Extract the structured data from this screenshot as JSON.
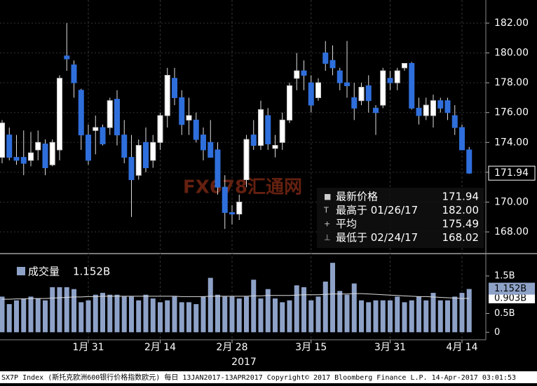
{
  "chart_data": {
    "type": "candlestick",
    "categories": [
      null,
      null,
      null,
      null,
      null,
      null,
      null,
      null,
      null,
      null,
      null,
      null,
      "1月 31",
      null,
      null,
      null,
      null,
      null,
      null,
      null,
      null,
      null,
      "2月 14",
      null,
      null,
      null,
      null,
      null,
      null,
      null,
      null,
      null,
      "2月 28",
      null,
      null,
      null,
      null,
      null,
      null,
      null,
      null,
      null,
      null,
      "3月 15",
      null,
      null,
      null,
      null,
      null,
      null,
      null,
      null,
      null,
      null,
      "3月 31",
      null,
      null,
      null,
      null,
      null,
      null,
      null,
      null,
      null,
      "4月 14",
      null
    ],
    "ohlc": [
      [
        173.0,
        175.5,
        172.6,
        175.3
      ],
      [
        174.5,
        175.0,
        172.8,
        173.0
      ],
      [
        173.0,
        174.5,
        172.5,
        172.8
      ],
      [
        173.0,
        174.8,
        171.8,
        172.6
      ],
      [
        172.8,
        174.7,
        172.4,
        173.3
      ],
      [
        173.5,
        174.8,
        172.8,
        174.0
      ],
      [
        173.9,
        174.2,
        171.8,
        172.3
      ],
      [
        172.5,
        174.2,
        172.4,
        174.0
      ],
      [
        173.5,
        178.5,
        172.8,
        178.3
      ],
      [
        179.8,
        182.0,
        178.8,
        179.6
      ],
      [
        179.2,
        179.5,
        177.0,
        178.0
      ],
      [
        177.5,
        177.6,
        173.5,
        174.5
      ],
      [
        174.5,
        175.2,
        172.5,
        172.8
      ],
      [
        174.8,
        175.8,
        173.2,
        175.0
      ],
      [
        175.0,
        175.2,
        173.8,
        173.9
      ],
      [
        175.0,
        177.0,
        174.5,
        176.8
      ],
      [
        176.9,
        177.5,
        173.8,
        174.5
      ],
      [
        174.5,
        175.5,
        172.6,
        173.0
      ],
      [
        173.0,
        174.5,
        169.0,
        171.5
      ],
      [
        171.8,
        174.2,
        171.5,
        173.8
      ],
      [
        174.0,
        175.0,
        172.0,
        172.3
      ],
      [
        172.8,
        174.5,
        172.3,
        174.0
      ],
      [
        174.0,
        176.0,
        173.5,
        175.8
      ],
      [
        175.8,
        179.0,
        175.0,
        178.5
      ],
      [
        178.3,
        179.0,
        176.5,
        177.0
      ],
      [
        177.0,
        177.5,
        174.5,
        175.2
      ],
      [
        175.5,
        177.0,
        174.5,
        175.8
      ],
      [
        175.5,
        176.0,
        174.0,
        174.2
      ],
      [
        174.5,
        175.0,
        172.8,
        173.5
      ],
      [
        174.0,
        175.5,
        173.0,
        173.0
      ],
      [
        173.5,
        174.0,
        170.5,
        171.0
      ],
      [
        171.0,
        171.8,
        168.2,
        169.3
      ],
      [
        169.3,
        169.8,
        168.5,
        169.2
      ],
      [
        169.2,
        170.5,
        168.8,
        170.0
      ],
      [
        171.5,
        174.5,
        171.0,
        174.2
      ],
      [
        174.5,
        175.5,
        173.5,
        173.8
      ],
      [
        173.8,
        176.8,
        173.5,
        176.2
      ],
      [
        175.8,
        176.3,
        173.5,
        173.9
      ],
      [
        173.6,
        174.5,
        173.0,
        173.8
      ],
      [
        174.0,
        176.0,
        173.5,
        175.5
      ],
      [
        175.5,
        178.0,
        175.3,
        177.8
      ],
      [
        178.3,
        180.0,
        177.5,
        178.8
      ],
      [
        178.8,
        179.5,
        177.5,
        178.5
      ],
      [
        178.0,
        178.5,
        176.0,
        176.5
      ],
      [
        177.0,
        178.3,
        176.8,
        178.0
      ],
      [
        180.0,
        180.8,
        178.8,
        179.3
      ],
      [
        179.5,
        180.5,
        178.5,
        179.0
      ],
      [
        178.8,
        179.0,
        177.5,
        178.0
      ],
      [
        178.0,
        180.8,
        177.0,
        177.8
      ],
      [
        177.0,
        178.0,
        175.5,
        176.3
      ],
      [
        176.8,
        178.0,
        176.5,
        177.7
      ],
      [
        177.8,
        178.5,
        176.0,
        176.8
      ],
      [
        176.3,
        176.5,
        174.5,
        176.0
      ],
      [
        176.5,
        179.0,
        176.3,
        178.8
      ],
      [
        178.3,
        178.8,
        177.5,
        178.0
      ],
      [
        178.0,
        179.0,
        177.5,
        178.8
      ],
      [
        179.0,
        179.3,
        178.8,
        179.3
      ],
      [
        179.3,
        179.4,
        176.2,
        176.3
      ],
      [
        176.3,
        177.0,
        175.2,
        175.8
      ],
      [
        175.8,
        177.0,
        175.5,
        176.5
      ],
      [
        175.8,
        177.2,
        175.0,
        176.8
      ],
      [
        176.8,
        177.0,
        176.0,
        176.3
      ],
      [
        176.8,
        177.0,
        175.5,
        176.0
      ],
      [
        175.8,
        176.5,
        174.5,
        175.0
      ],
      [
        175.0,
        175.2,
        173.5,
        173.5
      ],
      [
        173.5,
        173.7,
        171.9,
        171.94
      ]
    ],
    "ylim": [
      166.64,
      183.55
    ],
    "yticks": [
      {
        "value": 168,
        "label": "168.00"
      },
      {
        "value": 170,
        "label": "170.00"
      },
      {
        "value": 172,
        "label": "172.00"
      },
      {
        "value": 174,
        "label": "174.00"
      },
      {
        "value": 176,
        "label": "176.00"
      },
      {
        "value": 178,
        "label": "178.00"
      },
      {
        "value": 180,
        "label": "180.00"
      },
      {
        "value": 182,
        "label": "182.00"
      }
    ],
    "grid": true,
    "up_color": "#ffffff",
    "down_color": "#2f6fdc",
    "last_price_tag": "171.94",
    "legend": [
      {
        "label": "最新价格",
        "value": "171.94"
      },
      {
        "label": "最高于 01/26/17",
        "value": "182.00"
      },
      {
        "label": "平均",
        "value": "175.49"
      },
      {
        "label": "最低于 02/24/17",
        "value": "168.02"
      }
    ],
    "volume": {
      "name": "成交量",
      "legend_value": "1.152B",
      "color": "#8ea2c8",
      "values": [
        0.95,
        0.75,
        0.85,
        0.9,
        0.95,
        0.9,
        0.85,
        1.2,
        1.2,
        1.2,
        1.15,
        0.8,
        0.85,
        1.0,
        1.05,
        1.0,
        1.0,
        0.95,
        0.95,
        0.85,
        1.0,
        0.9,
        0.8,
        0.85,
        0.95,
        0.8,
        0.8,
        0.75,
        0.95,
        1.45,
        1.0,
        0.95,
        0.95,
        0.9,
        0.95,
        1.4,
        0.9,
        1.15,
        0.9,
        0.8,
        0.85,
        1.25,
        1.2,
        0.85,
        0.95,
        1.35,
        1.85,
        1.1,
        1.0,
        1.3,
        0.85,
        0.8,
        0.85,
        0.85,
        0.85,
        0.95,
        0.8,
        0.85,
        0.95,
        0.85,
        1.05,
        0.85,
        0.85,
        0.95,
        1.05,
        1.152
      ],
      "average": [
        0.88,
        0.88,
        0.89,
        0.89,
        0.9,
        0.9,
        0.9,
        0.91,
        0.92,
        0.93,
        0.94,
        0.94,
        0.95,
        0.95,
        0.96,
        0.96,
        0.96,
        0.96,
        0.96,
        0.96,
        0.96,
        0.96,
        0.96,
        0.96,
        0.96,
        0.95,
        0.95,
        0.95,
        0.95,
        0.96,
        0.96,
        0.96,
        0.96,
        0.96,
        0.96,
        0.97,
        0.97,
        0.98,
        0.98,
        0.98,
        0.98,
        0.99,
        1.0,
        1.0,
        1.0,
        1.01,
        1.02,
        1.02,
        1.02,
        1.03,
        1.03,
        1.02,
        1.01,
        1.0,
        0.99,
        0.98,
        0.97,
        0.96,
        0.95,
        0.95,
        0.94,
        0.93,
        0.92,
        0.91,
        0.9,
        0.903
      ],
      "ylim": [
        -0.2,
        2.04
      ],
      "yticks": [
        0,
        {
          "value": 0.5,
          "label": "0.5B"
        },
        {
          "value": 1.5,
          "label": "1.5B"
        }
      ],
      "tags": [
        "1.152B",
        "0.903B"
      ]
    },
    "x_year": "2017",
    "watermark": "FX678汇通网",
    "footer": "SX7P Index (斯托克欧洲600银行价格指数欧元)  每日 13JAN2017-13APR2017 Copyright© 2017 Bloomberg Finance L.P.  14-Apr-2017 03:01:53"
  }
}
